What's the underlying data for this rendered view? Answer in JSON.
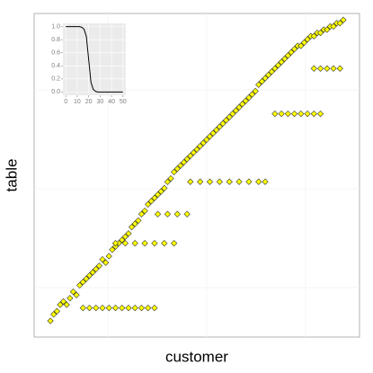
{
  "chart_data": [
    {
      "type": "scatter",
      "xlabel": "customer",
      "ylabel": "table",
      "color": "#ffff00",
      "xlim": [
        0,
        100
      ],
      "ylim": [
        0,
        100
      ],
      "x": [
        5,
        6,
        7,
        8,
        9,
        10,
        11,
        12,
        13,
        14,
        15,
        16,
        17,
        18,
        19,
        20,
        21,
        22,
        23,
        24,
        25,
        26,
        27,
        28,
        29,
        30,
        31,
        32,
        33,
        34,
        35,
        36,
        37,
        38,
        39,
        40,
        41,
        42,
        43,
        44,
        45,
        46,
        47,
        48,
        49,
        50,
        51,
        52,
        53,
        54,
        55,
        56,
        57,
        58,
        59,
        60,
        61,
        62,
        63,
        64,
        65,
        66,
        67,
        68,
        69,
        70,
        71,
        72,
        73,
        74,
        75,
        76,
        77,
        78,
        79,
        80,
        81,
        82,
        83,
        84,
        85,
        86,
        87,
        88,
        89,
        90,
        91,
        92,
        93,
        94,
        95,
        15,
        17,
        19,
        21,
        23,
        25,
        27,
        29,
        31,
        33,
        35,
        37,
        25,
        28,
        31,
        34,
        37,
        40,
        43,
        38,
        41,
        44,
        47,
        48,
        51,
        54,
        57,
        60,
        63,
        66,
        69,
        71,
        74,
        76,
        78,
        80,
        82,
        84,
        86,
        88,
        86,
        88,
        90,
        92,
        94
      ],
      "y": [
        5,
        7,
        8,
        10,
        11,
        10,
        12,
        14,
        13,
        16,
        17,
        18,
        19,
        20,
        21,
        22,
        24,
        23,
        25,
        27,
        28,
        29,
        30,
        31,
        32,
        34,
        35,
        36,
        38,
        39,
        41,
        42,
        43,
        44,
        45,
        46,
        48,
        49,
        51,
        52,
        53,
        54,
        55,
        56,
        57,
        58,
        59,
        60,
        61,
        62,
        63,
        64,
        65,
        66,
        67,
        68,
        69,
        70,
        71,
        72,
        73,
        74,
        75,
        76,
        78,
        79,
        80,
        81,
        82,
        83,
        84,
        85,
        86,
        87,
        88,
        89,
        90,
        90,
        91,
        92,
        93,
        93,
        94,
        94,
        95,
        95,
        96,
        96,
        97,
        97,
        98,
        9,
        9,
        9,
        9,
        9,
        9,
        9,
        9,
        9,
        9,
        9,
        9,
        29,
        29,
        29,
        29,
        29,
        29,
        29,
        38,
        38,
        38,
        38,
        48,
        48,
        48,
        48,
        48,
        48,
        48,
        48,
        48,
        69,
        69,
        69,
        69,
        69,
        69,
        69,
        69,
        83,
        83,
        83,
        83,
        83
      ]
    },
    {
      "type": "line",
      "color": "#000000",
      "xlim": [
        -2.5,
        52.5
      ],
      "ylim": [
        -0.05,
        1.05
      ],
      "xticks": [
        0,
        10,
        20,
        30,
        40,
        50
      ],
      "yticks": [
        {
          "value": 0,
          "label": "0.0"
        },
        0.2,
        0.4,
        0.6,
        0.8,
        {
          "value": 1,
          "label": "1.0"
        }
      ],
      "x": [
        0,
        2,
        4,
        6,
        8,
        10,
        12,
        14,
        16,
        18,
        20,
        22,
        24,
        26,
        28,
        30,
        32,
        34,
        36,
        38,
        40,
        42,
        44,
        46,
        48,
        50
      ],
      "values": [
        1,
        1,
        1,
        1,
        1,
        1,
        1,
        0.99,
        0.96,
        0.85,
        0.5,
        0.15,
        0.04,
        0.01,
        0,
        0,
        0,
        0,
        0,
        0,
        0,
        0,
        0,
        0,
        0,
        0
      ]
    }
  ]
}
